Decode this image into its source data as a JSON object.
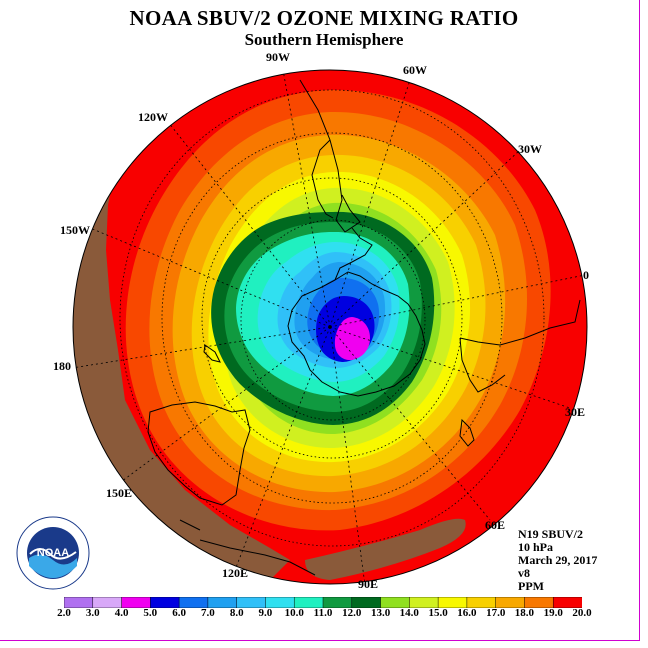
{
  "header": {
    "title": "NOAA SBUV/2 OZONE MIXING RATIO",
    "subtitle": "Southern Hemisphere"
  },
  "longitude_labels": [
    "90W",
    "60W",
    "30W",
    "0",
    "30E",
    "60E",
    "90E",
    "120E",
    "150E",
    "180",
    "150W",
    "120W"
  ],
  "info": {
    "instrument": "N19 SBUV/2",
    "level": "10 hPa",
    "date": "March 29, 2017",
    "version": "v8",
    "units": "PPM"
  },
  "logo": {
    "text": "NOAA"
  },
  "colorbar": {
    "labels": [
      "2.0",
      "3.0",
      "4.0",
      "5.0",
      "6.0",
      "7.0",
      "8.0",
      "9.0",
      "10.0",
      "11.0",
      "12.0",
      "13.0",
      "14.0",
      "15.0",
      "16.0",
      "17.0",
      "18.0",
      "19.0",
      "20.0"
    ],
    "colors": [
      "#b070f0",
      "#d8a8f8",
      "#f000f0",
      "#0000e0",
      "#1070f0",
      "#20a0f0",
      "#30c0f8",
      "#30e0f0",
      "#20f0c0",
      "#109a40",
      "#006a20",
      "#90e020",
      "#d0f020",
      "#f8f800",
      "#f8d000",
      "#f8a800",
      "#f87800",
      "#f80000",
      "#8a5a3a"
    ]
  },
  "legend": {
    "ozone_colors": {
      "brown": "#8a5a3a",
      "red": "#f80000",
      "orange_red": "#f84800",
      "orange": "#f87800",
      "orange_light": "#f8a800",
      "gold": "#f8d000",
      "yellow": "#f8f800",
      "yellow_green": "#d0f020",
      "light_green": "#90e020",
      "dark_green": "#006a20",
      "green": "#109a40",
      "aqua": "#20f0c0",
      "cyan": "#30e0f0",
      "sky": "#30c0f8",
      "light_blue": "#20a0f0",
      "blue": "#1070f0",
      "deep_blue": "#0000e0",
      "magenta": "#f000f0"
    }
  }
}
